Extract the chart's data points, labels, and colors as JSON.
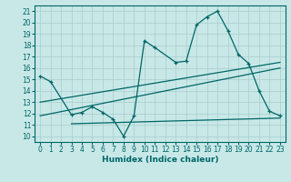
{
  "bg_color": "#c8e8e8",
  "line_color": "#006666",
  "grid_color": "#aacccc",
  "xlabel": "Humidex (Indice chaleur)",
  "xlim": [
    -0.5,
    23.5
  ],
  "ylim": [
    9.5,
    21.5
  ],
  "xticks": [
    0,
    1,
    2,
    3,
    4,
    5,
    6,
    7,
    8,
    9,
    10,
    11,
    12,
    13,
    14,
    15,
    16,
    17,
    18,
    19,
    20,
    21,
    22,
    23
  ],
  "yticks": [
    10,
    11,
    12,
    13,
    14,
    15,
    16,
    17,
    18,
    19,
    20,
    21
  ],
  "line1_x": [
    0,
    1,
    3,
    4,
    5,
    6,
    7,
    8,
    9,
    10,
    11,
    13,
    14,
    15,
    16,
    17,
    18,
    19,
    20,
    21,
    22,
    23
  ],
  "line1_y": [
    15.3,
    14.8,
    11.9,
    12.1,
    12.6,
    12.1,
    11.5,
    10.0,
    11.8,
    18.4,
    17.8,
    16.5,
    16.6,
    19.8,
    20.5,
    21.0,
    19.3,
    17.2,
    16.4,
    14.0,
    12.2,
    11.8
  ],
  "line2_x": [
    0,
    23
  ],
  "line2_y": [
    11.8,
    16.0
  ],
  "line3_x": [
    0,
    23
  ],
  "line3_y": [
    13.0,
    16.5
  ],
  "line4_x": [
    3,
    23
  ],
  "line4_y": [
    11.1,
    11.6
  ],
  "title_fontsize": 7,
  "tick_fontsize": 5.5,
  "xlabel_fontsize": 6.5
}
